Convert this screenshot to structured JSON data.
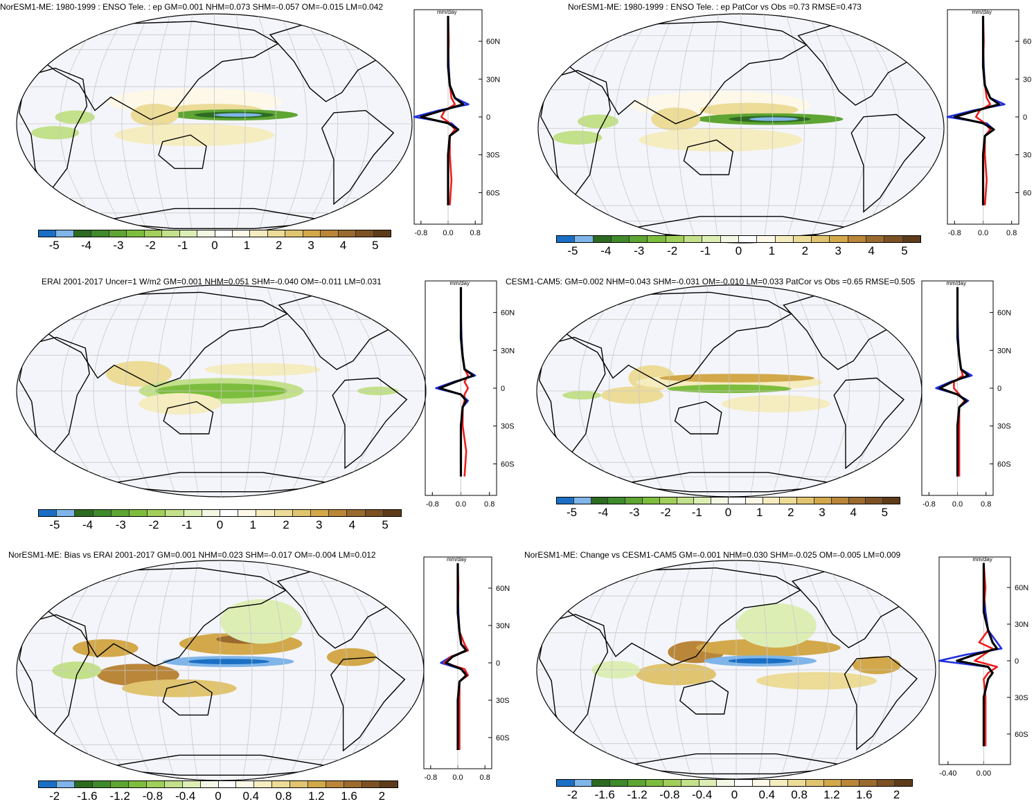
{
  "panels": [
    {
      "id": "p1",
      "title": "NorESM1-ME: 1980-1999 : ENSO Tele. : ep GM=0.001 NHM=0.073 SHM=-0.057 OM=-0.015 LM=0.042",
      "zonal_unit": "mm/day",
      "lat_ticks": [
        "60N",
        "30N",
        "0",
        "30S",
        "60S"
      ],
      "x_ticks": [
        "-0.8",
        "0.0",
        "0.8"
      ],
      "colorbar_labels": [
        "-5",
        "-4",
        "-3",
        "-2",
        "-1",
        "0",
        "1",
        "2",
        "3",
        "4",
        "5"
      ]
    },
    {
      "id": "p2",
      "title": "NorESM1-ME: 1980-1999 : ENSO Tele. : ep PatCor vs Obs =0.73 RMSE=0.473",
      "zonal_unit": "mm/day",
      "lat_ticks": [
        "60",
        "30",
        "0",
        "30",
        "60"
      ],
      "x_ticks": [
        "-0.8",
        "0.0",
        "0.8"
      ],
      "colorbar_labels": [
        "-5",
        "-4",
        "-3",
        "-2",
        "-1",
        "0",
        "1",
        "2",
        "3",
        "4",
        "5"
      ]
    },
    {
      "id": "p3",
      "title": "ERAI 2001-2017 Uncer=1 W/m2 GM=0.001 NHM=0.051 SHM=-0.040 OM=-0.011 LM=0.031",
      "zonal_unit": "mm/day",
      "lat_ticks": [
        "60N",
        "30N",
        "0",
        "30S",
        "60S"
      ],
      "x_ticks": [
        "-0.8",
        "0.0",
        "0.8"
      ],
      "colorbar_labels": [
        "-5",
        "-4",
        "-3",
        "-2",
        "-1",
        "0",
        "1",
        "2",
        "3",
        "4",
        "5"
      ]
    },
    {
      "id": "p4",
      "title": "CESM1-CAM5: GM=0.002 NHM=0.043 SHM=-0.031 OM=-0.010 LM=0.033 PatCor vs Obs =0.65 RMSE=0.505",
      "zonal_unit": "mm/day",
      "lat_ticks": [
        "60N",
        "30N",
        "0",
        "30S",
        "60S"
      ],
      "x_ticks": [
        "-0.8",
        "0.0",
        "0.8"
      ],
      "colorbar_labels": [
        "-5",
        "-4",
        "-3",
        "-2",
        "-1",
        "0",
        "1",
        "2",
        "3",
        "4",
        "5"
      ]
    },
    {
      "id": "p5",
      "title": "NorESM1-ME: Bias vs ERAI 2001-2017 GM=0.001 NHM=0.023 SHM=-0.017 OM=-0.004 LM=0.012",
      "zonal_unit": "mm/day",
      "lat_ticks": [
        "60N",
        "30N",
        "0",
        "30S",
        "60S"
      ],
      "x_ticks": [
        "-0.8",
        "0.0",
        "0.8"
      ],
      "colorbar_labels": [
        "-2",
        "-1.6",
        "-1.2",
        "-0.8",
        "-0.4",
        "0",
        "0.4",
        "0.8",
        "1.2",
        "1.6",
        "2"
      ]
    },
    {
      "id": "p6",
      "title": "NorESM1-ME: Change vs CESM1-CAM5 GM=-0.001 NHM=0.030 SHM=-0.025 OM=-0.005 LM=0.009",
      "zonal_unit": "mm/day",
      "lat_ticks": [
        "60N",
        "30N",
        "0",
        "30S",
        "60S"
      ],
      "x_ticks": [
        "-0.40",
        "0.00"
      ],
      "colorbar_labels": [
        "-2",
        "-1.6",
        "-1.2",
        "-0.8",
        "-0.4",
        "0",
        "0.4",
        "0.8",
        "1.2",
        "1.6",
        "2"
      ]
    }
  ],
  "colors": {
    "palette": [
      "#1a6fc4",
      "#7fb5e8",
      "#2d6b22",
      "#3f8a2a",
      "#5ea533",
      "#7dbd3e",
      "#a1cf5a",
      "#c3e08a",
      "#ddeeb5",
      "#f2f8e4",
      "#ffffff",
      "#fdf8e8",
      "#f5ecc0",
      "#ecdc98",
      "#e0c470",
      "#d2a84a",
      "#b9863a",
      "#9a6a2e",
      "#7c5124",
      "#5e3c1a"
    ],
    "ocean": "#f4f5fa",
    "grid": "#c8c8c8",
    "series_blue": "#1f2fe0",
    "series_red": "#ee1c1c",
    "series_black": "#000000"
  },
  "chart_data": [
    {
      "type": "heatmap",
      "title": "NorESM1-ME: 1980-1999 : ENSO Tele. : ep GM=0.001 NHM=0.073 SHM=-0.057 OM=-0.015 LM=0.042",
      "colorbar_range": [
        -5,
        5
      ],
      "zonal_mean": {
        "xlim": [
          -1.0,
          1.0
        ],
        "unit": "mm/day",
        "lat": [
          80,
          60,
          40,
          25,
          15,
          10,
          5,
          0,
          -5,
          -10,
          -15,
          -30,
          -50,
          -70
        ],
        "series": [
          {
            "color": "blue",
            "values": [
              0.0,
              0.0,
              0.02,
              0.05,
              0.2,
              0.6,
              -0.3,
              -1.0,
              0.1,
              0.3,
              0.05,
              0.0,
              0.0,
              0.0
            ]
          },
          {
            "color": "red",
            "values": [
              0.0,
              0.02,
              0.0,
              0.05,
              0.1,
              0.2,
              -0.1,
              -0.2,
              0.05,
              0.2,
              0.05,
              0.05,
              0.1,
              0.05
            ]
          },
          {
            "color": "black",
            "values": [
              0.0,
              0.0,
              0.0,
              0.05,
              0.2,
              0.45,
              -0.2,
              -0.8,
              0.0,
              0.3,
              0.05,
              0.0,
              0.0,
              0.0
            ]
          }
        ]
      }
    },
    {
      "type": "heatmap",
      "title": "NorESM1-ME: 1980-1999 : ENSO Tele. : ep PatCor vs Obs =0.73 RMSE=0.473",
      "colorbar_range": [
        -5,
        5
      ],
      "zonal_mean": {
        "xlim": [
          -1.0,
          1.0
        ],
        "unit": "mm/day",
        "lat": [
          80,
          60,
          40,
          25,
          15,
          10,
          5,
          0,
          -5,
          -10,
          -15,
          -30,
          -50,
          -70
        ],
        "series": [
          {
            "color": "blue",
            "values": [
              0.0,
              0.0,
              0.02,
              0.05,
              0.2,
              0.6,
              -0.3,
              -1.0,
              0.1,
              0.3,
              0.05,
              0.0,
              0.0,
              0.0
            ]
          },
          {
            "color": "red",
            "values": [
              0.0,
              0.02,
              0.0,
              0.05,
              0.1,
              0.2,
              -0.1,
              -0.2,
              0.05,
              0.2,
              0.05,
              0.05,
              0.1,
              0.05
            ]
          },
          {
            "color": "black",
            "values": [
              0.0,
              0.0,
              0.0,
              0.05,
              0.2,
              0.45,
              -0.2,
              -0.8,
              0.0,
              0.3,
              0.05,
              0.0,
              0.0,
              0.0
            ]
          }
        ]
      }
    },
    {
      "type": "heatmap",
      "title": "ERAI 2001-2017 Uncer=1 W/m2 GM=0.001 NHM=0.051 SHM=-0.040 OM=-0.011 LM=0.031",
      "colorbar_range": [
        -5,
        5
      ],
      "zonal_mean": {
        "xlim": [
          -1.0,
          1.0
        ],
        "unit": "mm/day",
        "lat": [
          80,
          60,
          40,
          25,
          15,
          10,
          5,
          0,
          -5,
          -10,
          -15,
          -30,
          -50,
          -70
        ],
        "series": [
          {
            "color": "blue",
            "values": [
              0.0,
              0.0,
              0.02,
              0.05,
              0.1,
              0.4,
              -0.2,
              -0.7,
              0.0,
              0.2,
              0.05,
              0.0,
              0.0,
              0.0
            ]
          },
          {
            "color": "red",
            "values": [
              0.0,
              0.0,
              0.0,
              0.05,
              0.1,
              0.2,
              0.1,
              0.2,
              0.1,
              0.1,
              0.05,
              0.05,
              0.15,
              0.1
            ]
          },
          {
            "color": "black",
            "values": [
              0.0,
              0.0,
              0.0,
              0.05,
              0.1,
              0.35,
              -0.15,
              -0.6,
              0.0,
              0.15,
              0.05,
              0.0,
              0.0,
              0.0
            ]
          }
        ]
      }
    },
    {
      "type": "heatmap",
      "title": "CESM1-CAM5: GM=0.002 NHM=0.043 SHM=-0.031 OM=-0.010 LM=0.033 PatCor vs Obs =0.65 RMSE=0.505",
      "colorbar_range": [
        -5,
        5
      ],
      "zonal_mean": {
        "xlim": [
          -1.0,
          1.0
        ],
        "unit": "mm/day",
        "lat": [
          80,
          60,
          40,
          25,
          15,
          10,
          5,
          0,
          -5,
          -10,
          -15,
          -30,
          -50,
          -70
        ],
        "series": [
          {
            "color": "blue",
            "values": [
              0.0,
              0.0,
              0.02,
              0.05,
              0.1,
              0.4,
              -0.2,
              -0.6,
              0.0,
              0.3,
              0.05,
              0.0,
              0.0,
              0.0
            ]
          },
          {
            "color": "red",
            "values": [
              0.0,
              0.0,
              0.0,
              0.05,
              0.1,
              0.15,
              -0.1,
              -0.1,
              0.05,
              0.2,
              0.05,
              0.05,
              0.05,
              0.05
            ]
          },
          {
            "color": "black",
            "values": [
              0.0,
              0.0,
              0.0,
              0.05,
              0.1,
              0.3,
              -0.15,
              -0.5,
              0.0,
              0.25,
              0.05,
              0.0,
              0.0,
              0.0
            ]
          }
        ]
      }
    },
    {
      "type": "heatmap",
      "title": "NorESM1-ME: Bias vs ERAI 2001-2017 GM=0.001 NHM=0.023 SHM=-0.017 OM=-0.004 LM=0.012",
      "colorbar_range": [
        -2,
        2
      ],
      "zonal_mean": {
        "xlim": [
          -1.0,
          1.0
        ],
        "unit": "mm/day",
        "lat": [
          80,
          60,
          40,
          25,
          15,
          10,
          5,
          0,
          -5,
          -10,
          -15,
          -30,
          -50,
          -70
        ],
        "series": [
          {
            "color": "blue",
            "values": [
              0.0,
              0.0,
              0.02,
              0.05,
              0.1,
              0.3,
              -0.2,
              -0.5,
              0.1,
              0.3,
              0.05,
              0.0,
              0.0,
              0.0
            ]
          },
          {
            "color": "red",
            "values": [
              0.0,
              0.02,
              0.0,
              0.05,
              0.2,
              0.3,
              -0.2,
              -0.4,
              0.2,
              0.3,
              0.05,
              0.05,
              0.05,
              0.05
            ]
          },
          {
            "color": "black",
            "values": [
              0.0,
              0.0,
              0.0,
              0.05,
              0.1,
              0.25,
              -0.15,
              -0.35,
              0.1,
              0.25,
              0.05,
              0.0,
              0.0,
              0.0
            ]
          }
        ]
      }
    },
    {
      "type": "heatmap",
      "title": "NorESM1-ME: Change vs CESM1-CAM5 GM=-0.001 NHM=0.030 SHM=-0.025 OM=-0.005 LM=0.009",
      "colorbar_range": [
        -2,
        2
      ],
      "zonal_mean": {
        "xlim": [
          -0.5,
          0.3
        ],
        "unit": "mm/day",
        "lat": [
          80,
          60,
          40,
          25,
          15,
          10,
          5,
          0,
          -5,
          -10,
          -15,
          -30,
          -50,
          -70
        ],
        "series": [
          {
            "color": "blue",
            "values": [
              0.0,
              0.0,
              0.02,
              0.05,
              0.15,
              0.2,
              -0.2,
              -0.5,
              0.05,
              0.1,
              0.05,
              0.0,
              0.0,
              0.0
            ]
          },
          {
            "color": "red",
            "values": [
              0.0,
              0.02,
              0.0,
              0.05,
              -0.05,
              0.1,
              0.0,
              -0.1,
              0.15,
              0.05,
              0.0,
              0.02,
              0.02,
              0.02
            ]
          },
          {
            "color": "black",
            "values": [
              0.0,
              0.0,
              0.0,
              0.05,
              0.1,
              0.15,
              -0.1,
              -0.3,
              0.05,
              0.1,
              0.05,
              0.0,
              0.0,
              0.0
            ]
          }
        ]
      }
    }
  ]
}
